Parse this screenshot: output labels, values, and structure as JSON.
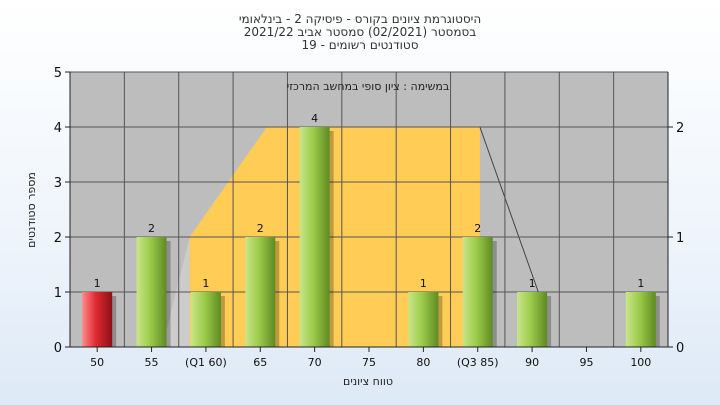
{
  "chart_data": {
    "type": "bar",
    "title": "היסטוגרמת ציונים בקורס - פיסיקה 2 - בינלאומי",
    "subtitle_lines": [
      "בסמסטר  (02/2021)  סמסטר אביב 2021/22",
      "סטודנטים רשומים - 19"
    ],
    "xlabel": "טווח ציונים",
    "ylabel": "מספר סטודנטים",
    "ylim": [
      0,
      5
    ],
    "yticks": [
      "0",
      "1",
      "2",
      "3",
      "4",
      "5"
    ],
    "y2lim": [
      0,
      2.5
    ],
    "y2ticks": [
      "0",
      "1",
      "2"
    ],
    "grid": true,
    "categories": [
      "50",
      "55",
      "(Q1 60)",
      "65",
      "70",
      "75",
      "80",
      "(Q3 85)",
      "90",
      "95",
      "100"
    ],
    "values": [
      1,
      2,
      1,
      2,
      4,
      0,
      1,
      2,
      1,
      0,
      1
    ],
    "value_labels": [
      "1",
      "2",
      "1",
      "2",
      "4",
      "",
      "1",
      "2",
      "1",
      "",
      "1"
    ],
    "bar_colors": [
      "#d9262e",
      "#8dbf3a",
      "#8dbf3a",
      "#8dbf3a",
      "#8dbf3a",
      "#8dbf3a",
      "#8dbf3a",
      "#8dbf3a",
      "#8dbf3a",
      "#8dbf3a",
      "#8dbf3a"
    ],
    "annotation": "במשימה : ציון סופי במחשב המרכזי",
    "box_range": [
      "60",
      "85"
    ],
    "box_height": 2,
    "box_color": "#ffcc55",
    "plot_background": "#bdbdbd"
  }
}
